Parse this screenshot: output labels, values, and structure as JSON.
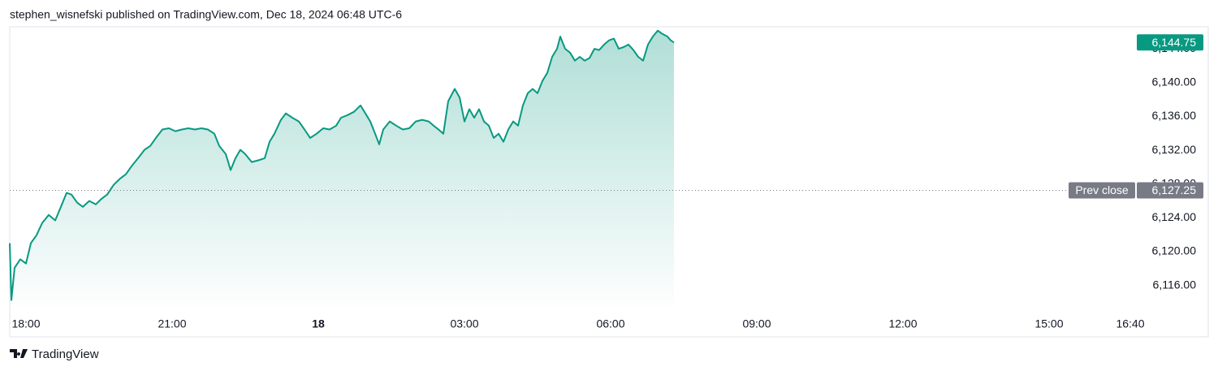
{
  "header": {
    "title": "stephen_wisnefski published on TradingView.com, Dec 18, 2024 06:48 UTC-6"
  },
  "footer": {
    "brand": "TradingView"
  },
  "chart_data": {
    "type": "area",
    "color": "#089981",
    "x": [
      -20,
      -18,
      -14,
      -7,
      0,
      6,
      13,
      20,
      28,
      36,
      43,
      50,
      56,
      63,
      70,
      78,
      86,
      93,
      100,
      108,
      116,
      123,
      130,
      138,
      146,
      153,
      160,
      168,
      176,
      184,
      192,
      200,
      208,
      216,
      224,
      232,
      238,
      246,
      252,
      258,
      264,
      270,
      278,
      286,
      294,
      300,
      306,
      314,
      320,
      328,
      336,
      343,
      350,
      358,
      366,
      374,
      382,
      388,
      396,
      404,
      412,
      418,
      424,
      430,
      435,
      440,
      448,
      456,
      464,
      472,
      480,
      488,
      496,
      502,
      508,
      514,
      520,
      528,
      534,
      540,
      546,
      552,
      558,
      564,
      570,
      576,
      582,
      588,
      594,
      600,
      606,
      612,
      618,
      624,
      630,
      636,
      642,
      648,
      654,
      658,
      664,
      670,
      676,
      682,
      688,
      694,
      700,
      706,
      712,
      718,
      724,
      730,
      736,
      742,
      748,
      754,
      760,
      766,
      772,
      778,
      784,
      790,
      794,
      798
    ],
    "values": [
      6121.0,
      6114.27,
      6118.1,
      6119.1,
      6118.6,
      6121.0,
      6121.95,
      6123.4,
      6124.35,
      6123.7,
      6125.3,
      6126.95,
      6126.75,
      6125.8,
      6125.3,
      6126.0,
      6125.6,
      6126.25,
      6126.75,
      6127.9,
      6128.65,
      6129.15,
      6130.1,
      6131.05,
      6132.05,
      6132.5,
      6133.45,
      6134.45,
      6134.6,
      6134.25,
      6134.45,
      6134.6,
      6134.45,
      6134.6,
      6134.45,
      6133.95,
      6132.5,
      6131.55,
      6129.65,
      6131.05,
      6132.05,
      6131.55,
      6130.6,
      6130.8,
      6131.05,
      6133.0,
      6133.95,
      6135.6,
      6136.35,
      6135.85,
      6135.4,
      6134.45,
      6133.45,
      6133.95,
      6134.6,
      6134.45,
      6134.9,
      6135.85,
      6136.15,
      6136.55,
      6137.3,
      6136.35,
      6135.4,
      6133.95,
      6132.7,
      6134.45,
      6135.4,
      6134.9,
      6134.45,
      6134.6,
      6135.4,
      6135.6,
      6135.4,
      6134.9,
      6134.45,
      6133.95,
      6137.8,
      6139.25,
      6138.25,
      6135.4,
      6136.85,
      6135.85,
      6136.85,
      6135.4,
      6134.9,
      6133.45,
      6133.95,
      6133.0,
      6134.45,
      6135.4,
      6134.9,
      6137.3,
      6138.75,
      6139.25,
      6138.75,
      6140.2,
      6141.15,
      6143.05,
      6144.0,
      6145.45,
      6144.0,
      6143.55,
      6142.6,
      6143.05,
      6142.6,
      6142.9,
      6144.0,
      6143.85,
      6144.5,
      6145.0,
      6145.2,
      6144.0,
      6144.2,
      6144.5,
      6143.85,
      6143.05,
      6142.6,
      6144.5,
      6145.45,
      6146.15,
      6145.75,
      6145.45,
      6145.0,
      6144.75
    ],
    "xlim": [
      -20,
      1368
    ],
    "xticks": [
      {
        "value": 0,
        "label": "18:00"
      },
      {
        "value": 180,
        "label": "21:00"
      },
      {
        "value": 360,
        "label": "18"
      },
      {
        "value": 540,
        "label": "03:00"
      },
      {
        "value": 720,
        "label": "06:00"
      },
      {
        "value": 900,
        "label": "09:00"
      },
      {
        "value": 1080,
        "label": "12:00"
      },
      {
        "value": 1260,
        "label": "15:00"
      },
      {
        "value": 1360,
        "label": "16:40"
      }
    ],
    "ylim": [
      6112.8,
      6146.6
    ],
    "yticks": [
      {
        "value": 6116,
        "label": "6,116.00"
      },
      {
        "value": 6120,
        "label": "6,120.00"
      },
      {
        "value": 6124,
        "label": "6,124.00"
      },
      {
        "value": 6128,
        "label": "6,128.00"
      },
      {
        "value": 6132,
        "label": "6,132.00"
      },
      {
        "value": 6136,
        "label": "6,136.00"
      },
      {
        "value": 6140,
        "label": "6,140.00"
      },
      {
        "value": 6144,
        "label": "6,144.00"
      }
    ],
    "last_price": {
      "value": 6144.75,
      "label": "6,144.75"
    },
    "reference_line": {
      "name": "Prev close",
      "value": 6127.25,
      "label": "6,127.25",
      "color": "#787b86"
    }
  }
}
